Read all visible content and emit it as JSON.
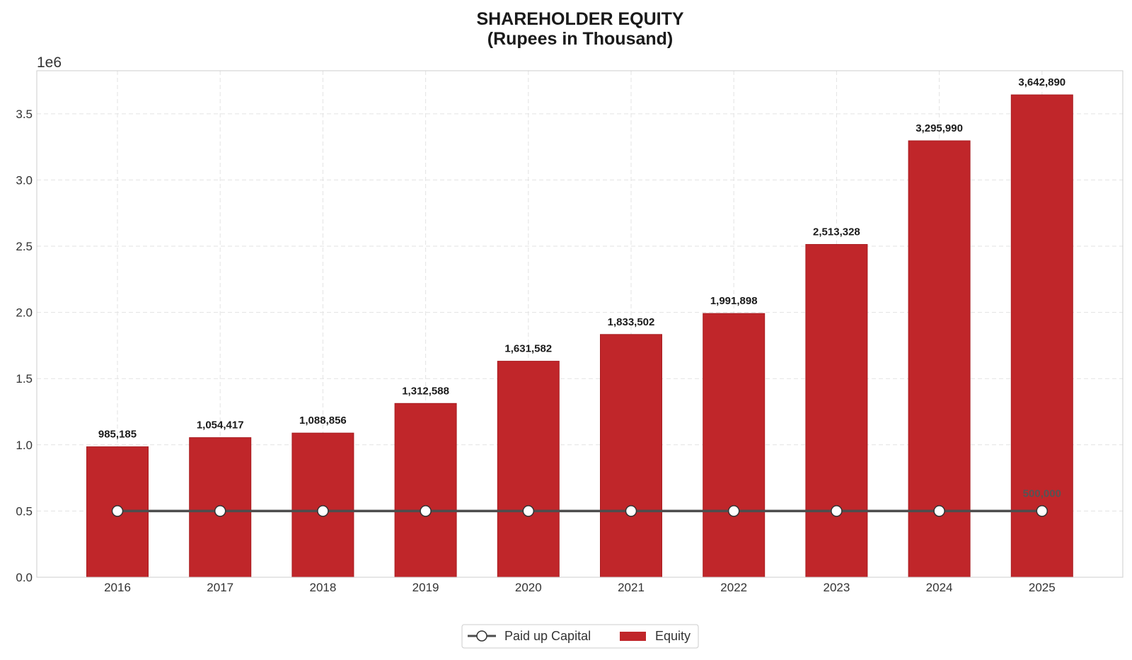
{
  "chart_data": {
    "type": "bar",
    "title": "SHAREHOLDER EQUITY",
    "subtitle": "(Rupees in Thousand)",
    "categories": [
      "2016",
      "2017",
      "2018",
      "2019",
      "2020",
      "2021",
      "2022",
      "2023",
      "2024",
      "2025"
    ],
    "series": [
      {
        "name": "Equity",
        "type": "bar",
        "color": "#c0262a",
        "values": [
          985185,
          1054417,
          1088856,
          1312588,
          1631582,
          1833502,
          1991898,
          2513328,
          3295990,
          3642890
        ],
        "labels": [
          "985,185",
          "1,054,417",
          "1,088,856",
          "1,312,588",
          "1,631,582",
          "1,833,502",
          "1,991,898",
          "2,513,328",
          "3,295,990",
          "3,642,890"
        ]
      },
      {
        "name": "Paid up Capital",
        "type": "line",
        "color": "#4d4d4d",
        "values": [
          500000,
          500000,
          500000,
          500000,
          500000,
          500000,
          500000,
          500000,
          500000,
          500000
        ],
        "last_label": "500,000"
      }
    ],
    "y_scale_label": "1e6",
    "yticks": [
      "0.0",
      "0.5",
      "1.0",
      "1.5",
      "2.0",
      "2.5",
      "3.0",
      "3.5"
    ],
    "ylim": [
      0,
      3825000
    ],
    "grid": true,
    "legend_position": "bottom-center"
  }
}
